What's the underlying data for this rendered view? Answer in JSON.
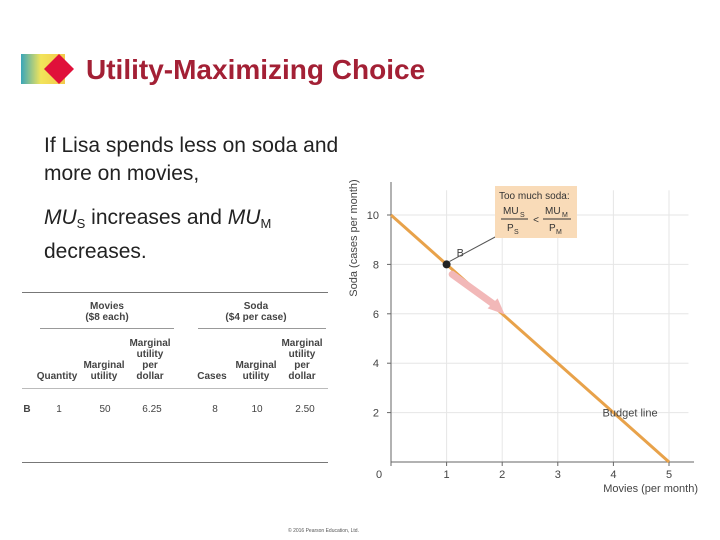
{
  "header": {
    "title": "Utility-Maximizing Choice",
    "logo_icon": "diamond-logo-icon"
  },
  "text": {
    "intro": "If Lisa spends less on soda and more on movies,",
    "mu_prefix": "MU",
    "mu_sub_s": "S",
    "mu_mid": " increases and ",
    "mu_prefix2": "MU",
    "mu_sub_m": "M",
    "mu_end": "decreases."
  },
  "table": {
    "movies_title": "Movies",
    "movies_price": "($8 each)",
    "soda_title": "Soda",
    "soda_price": "($4 per case)",
    "col_quantity": "Quantity",
    "col_mu_movies_1": "Marginal",
    "col_mu_movies_2": "utility",
    "col_mupd_movies_1": "Marginal",
    "col_mupd_movies_2": "utility",
    "col_mupd_movies_3": "per",
    "col_mupd_movies_4": "dollar",
    "col_cases": "Cases",
    "col_mu_soda_1": "Marginal",
    "col_mu_soda_2": "utility",
    "col_mupd_soda_1": "Marginal",
    "col_mupd_soda_2": "utility",
    "col_mupd_soda_3": "per",
    "col_mupd_soda_4": "dollar",
    "row": {
      "label": "B",
      "quantity": "1",
      "mu_movies": "50",
      "mupd_movies": "6.25",
      "cases": "8",
      "mu_soda": "10",
      "mupd_soda": "2.50"
    }
  },
  "chart_data": {
    "type": "line",
    "xlabel": "Movies (per month)",
    "ylabel": "Soda (cases per month)",
    "xlim": [
      0,
      5
    ],
    "ylim": [
      0,
      11
    ],
    "x_ticks": [
      "0",
      "1",
      "2",
      "3",
      "4",
      "5"
    ],
    "y_ticks": [
      "2",
      "4",
      "6",
      "8",
      "10"
    ],
    "series": [
      {
        "name": "Budget line",
        "x": [
          0,
          5
        ],
        "y": [
          10,
          0
        ]
      }
    ],
    "point": {
      "label": "B",
      "x": 1,
      "y": 8
    },
    "arrow": {
      "from": [
        1.1,
        7.6
      ],
      "to": [
        1.9,
        6.3
      ]
    },
    "annotation": {
      "heading": "Too much soda:",
      "num_left": "MU",
      "num_left_sub": "S",
      "den_left": "P",
      "den_left_sub": "S",
      "relation": "<",
      "num_right": "MU",
      "num_right_sub": "M",
      "den_right": "P",
      "den_right_sub": "M"
    },
    "colors": {
      "line": "#e8a24a",
      "arrow": "#f2b8b8",
      "box": "#f9dbb8",
      "point": "#222222"
    }
  },
  "footer": {
    "copyright": "© 2016 Pearson Education, Ltd."
  }
}
